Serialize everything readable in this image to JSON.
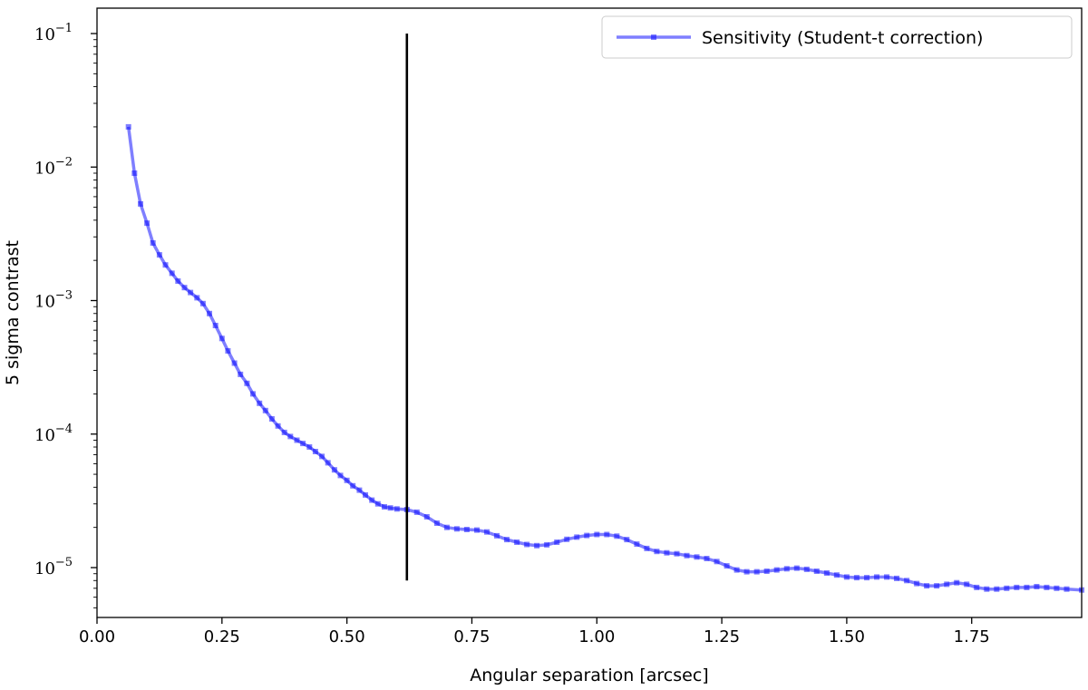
{
  "chart_data": {
    "type": "line",
    "title": "",
    "xlabel": "Angular separation [arcsec]",
    "ylabel": "5 sigma contrast",
    "xlim": [
      0.0,
      1.97
    ],
    "ylim": [
      4.5e-06,
      0.1
    ],
    "yscale": "log",
    "grid": false,
    "legend_position": "top-right",
    "x_ticks": [
      0.0,
      0.25,
      0.5,
      0.75,
      1.0,
      1.25,
      1.5,
      1.75
    ],
    "x_tick_labels": [
      "0.00",
      "0.25",
      "0.50",
      "0.75",
      "1.00",
      "1.25",
      "1.50",
      "1.75"
    ],
    "y_ticks": [
      {
        "value": 0.1,
        "base": "10",
        "exp": "−1"
      },
      {
        "value": 0.01,
        "base": "10",
        "exp": "−2"
      },
      {
        "value": 0.001,
        "base": "10",
        "exp": "−3"
      },
      {
        "value": 0.0001,
        "base": "10",
        "exp": "−4"
      },
      {
        "value": 1e-05,
        "base": "10",
        "exp": "−5"
      }
    ],
    "series": [
      {
        "name": "Sensitivity (Student-t correction)",
        "color": "#0000ff",
        "opacity": 0.5,
        "marker": "square",
        "points": [
          [
            0.063,
            0.02
          ],
          [
            0.075,
            0.009
          ],
          [
            0.087,
            0.0053
          ],
          [
            0.1,
            0.0038
          ],
          [
            0.112,
            0.0027
          ],
          [
            0.125,
            0.0022
          ],
          [
            0.137,
            0.00185
          ],
          [
            0.15,
            0.0016
          ],
          [
            0.162,
            0.0014
          ],
          [
            0.175,
            0.00125
          ],
          [
            0.187,
            0.00115
          ],
          [
            0.2,
            0.00105
          ],
          [
            0.212,
            0.00095
          ],
          [
            0.225,
            0.0008
          ],
          [
            0.237,
            0.00065
          ],
          [
            0.25,
            0.00052
          ],
          [
            0.262,
            0.00042
          ],
          [
            0.275,
            0.00034
          ],
          [
            0.287,
            0.00028
          ],
          [
            0.3,
            0.00024
          ],
          [
            0.312,
            0.0002
          ],
          [
            0.325,
            0.00017
          ],
          [
            0.337,
            0.00015
          ],
          [
            0.35,
            0.00013
          ],
          [
            0.362,
            0.000115
          ],
          [
            0.375,
            0.000103
          ],
          [
            0.387,
            9.6e-05
          ],
          [
            0.4,
            9e-05
          ],
          [
            0.412,
            8.5e-05
          ],
          [
            0.425,
            8e-05
          ],
          [
            0.437,
            7.4e-05
          ],
          [
            0.45,
            6.8e-05
          ],
          [
            0.462,
            6.1e-05
          ],
          [
            0.475,
            5.4e-05
          ],
          [
            0.487,
            4.9e-05
          ],
          [
            0.5,
            4.5e-05
          ],
          [
            0.512,
            4.1e-05
          ],
          [
            0.525,
            3.8e-05
          ],
          [
            0.537,
            3.5e-05
          ],
          [
            0.55,
            3.2e-05
          ],
          [
            0.562,
            3e-05
          ],
          [
            0.575,
            2.85e-05
          ],
          [
            0.587,
            2.8e-05
          ],
          [
            0.6,
            2.75e-05
          ],
          [
            0.62,
            2.72e-05
          ],
          [
            0.64,
            2.6e-05
          ],
          [
            0.66,
            2.4e-05
          ],
          [
            0.68,
            2.15e-05
          ],
          [
            0.7,
            2e-05
          ],
          [
            0.72,
            1.95e-05
          ],
          [
            0.74,
            1.93e-05
          ],
          [
            0.76,
            1.91e-05
          ],
          [
            0.78,
            1.85e-05
          ],
          [
            0.8,
            1.73e-05
          ],
          [
            0.82,
            1.62e-05
          ],
          [
            0.84,
            1.55e-05
          ],
          [
            0.86,
            1.49e-05
          ],
          [
            0.88,
            1.46e-05
          ],
          [
            0.9,
            1.48e-05
          ],
          [
            0.92,
            1.55e-05
          ],
          [
            0.94,
            1.63e-05
          ],
          [
            0.96,
            1.69e-05
          ],
          [
            0.98,
            1.74e-05
          ],
          [
            1.0,
            1.77e-05
          ],
          [
            1.02,
            1.77e-05
          ],
          [
            1.04,
            1.72e-05
          ],
          [
            1.06,
            1.62e-05
          ],
          [
            1.08,
            1.5e-05
          ],
          [
            1.1,
            1.39e-05
          ],
          [
            1.12,
            1.32e-05
          ],
          [
            1.14,
            1.29e-05
          ],
          [
            1.16,
            1.27e-05
          ],
          [
            1.18,
            1.23e-05
          ],
          [
            1.2,
            1.2e-05
          ],
          [
            1.22,
            1.17e-05
          ],
          [
            1.24,
            1.11e-05
          ],
          [
            1.26,
            1.03e-05
          ],
          [
            1.28,
            9.6e-06
          ],
          [
            1.3,
            9.3e-06
          ],
          [
            1.32,
            9.3e-06
          ],
          [
            1.34,
            9.4e-06
          ],
          [
            1.36,
            9.6e-06
          ],
          [
            1.38,
            9.8e-06
          ],
          [
            1.4,
            9.9e-06
          ],
          [
            1.42,
            9.7e-06
          ],
          [
            1.44,
            9.4e-06
          ],
          [
            1.46,
            9.1e-06
          ],
          [
            1.48,
            8.8e-06
          ],
          [
            1.5,
            8.5e-06
          ],
          [
            1.52,
            8.4e-06
          ],
          [
            1.54,
            8.4e-06
          ],
          [
            1.56,
            8.5e-06
          ],
          [
            1.58,
            8.5e-06
          ],
          [
            1.6,
            8.3e-06
          ],
          [
            1.62,
            8e-06
          ],
          [
            1.64,
            7.6e-06
          ],
          [
            1.66,
            7.3e-06
          ],
          [
            1.68,
            7.3e-06
          ],
          [
            1.7,
            7.5e-06
          ],
          [
            1.72,
            7.7e-06
          ],
          [
            1.74,
            7.5e-06
          ],
          [
            1.76,
            7.1e-06
          ],
          [
            1.78,
            6.9e-06
          ],
          [
            1.8,
            6.9e-06
          ],
          [
            1.82,
            7e-06
          ],
          [
            1.84,
            7.1e-06
          ],
          [
            1.86,
            7.1e-06
          ],
          [
            1.88,
            7.2e-06
          ],
          [
            1.9,
            7.1e-06
          ],
          [
            1.92,
            7e-06
          ],
          [
            1.94,
            6.9e-06
          ],
          [
            1.97,
            6.8e-06
          ]
        ]
      }
    ],
    "vertical_line": {
      "x": 0.62,
      "y_from": 8e-06,
      "y_to": 0.1,
      "color": "#000000"
    }
  }
}
